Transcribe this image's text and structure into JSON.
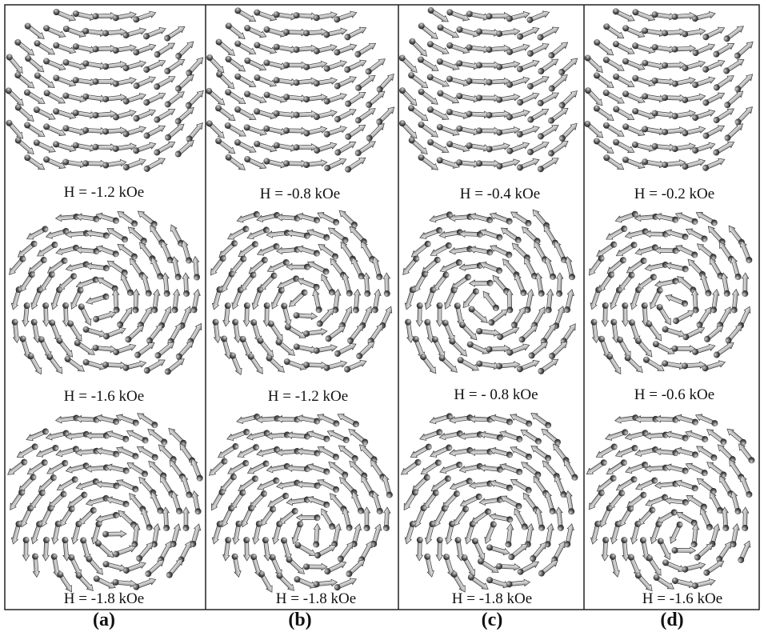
{
  "figure": {
    "columns": [
      {
        "caption": "(a)",
        "panels": [
          {
            "field_label": "H = -1.2 kOe",
            "state": "c-state"
          },
          {
            "field_label": "H = -1.6 kOe",
            "state": "vortex"
          },
          {
            "field_label": "H = -1.8 kOe",
            "state": "vortex"
          }
        ]
      },
      {
        "caption": "(b)",
        "panels": [
          {
            "field_label": "H = -0.8 kOe",
            "state": "c-state"
          },
          {
            "field_label": "H = -1.2 kOe",
            "state": "vortex"
          },
          {
            "field_label": "H = -1.8 kOe",
            "state": "vortex"
          }
        ]
      },
      {
        "caption": "(c)",
        "panels": [
          {
            "field_label": "H = -0.4 kOe",
            "state": "c-state"
          },
          {
            "field_label": "H = - 0.8 kOe",
            "state": "vortex"
          },
          {
            "field_label": "H = -1.8 kOe",
            "state": "vortex"
          }
        ]
      },
      {
        "caption": "(d)",
        "panels": [
          {
            "field_label": "H = -0.2 kOe",
            "state": "c-state"
          },
          {
            "field_label": "H = -0.6 kOe",
            "state": "vortex"
          },
          {
            "field_label": "H = -1.6 kOe",
            "state": "vortex"
          }
        ]
      }
    ],
    "colors": {
      "arrow_body": "#c8c8c8",
      "arrow_edge": "#3a3a3a",
      "tail_ball": "#555555",
      "frame": "#222222",
      "text": "#111111"
    }
  }
}
